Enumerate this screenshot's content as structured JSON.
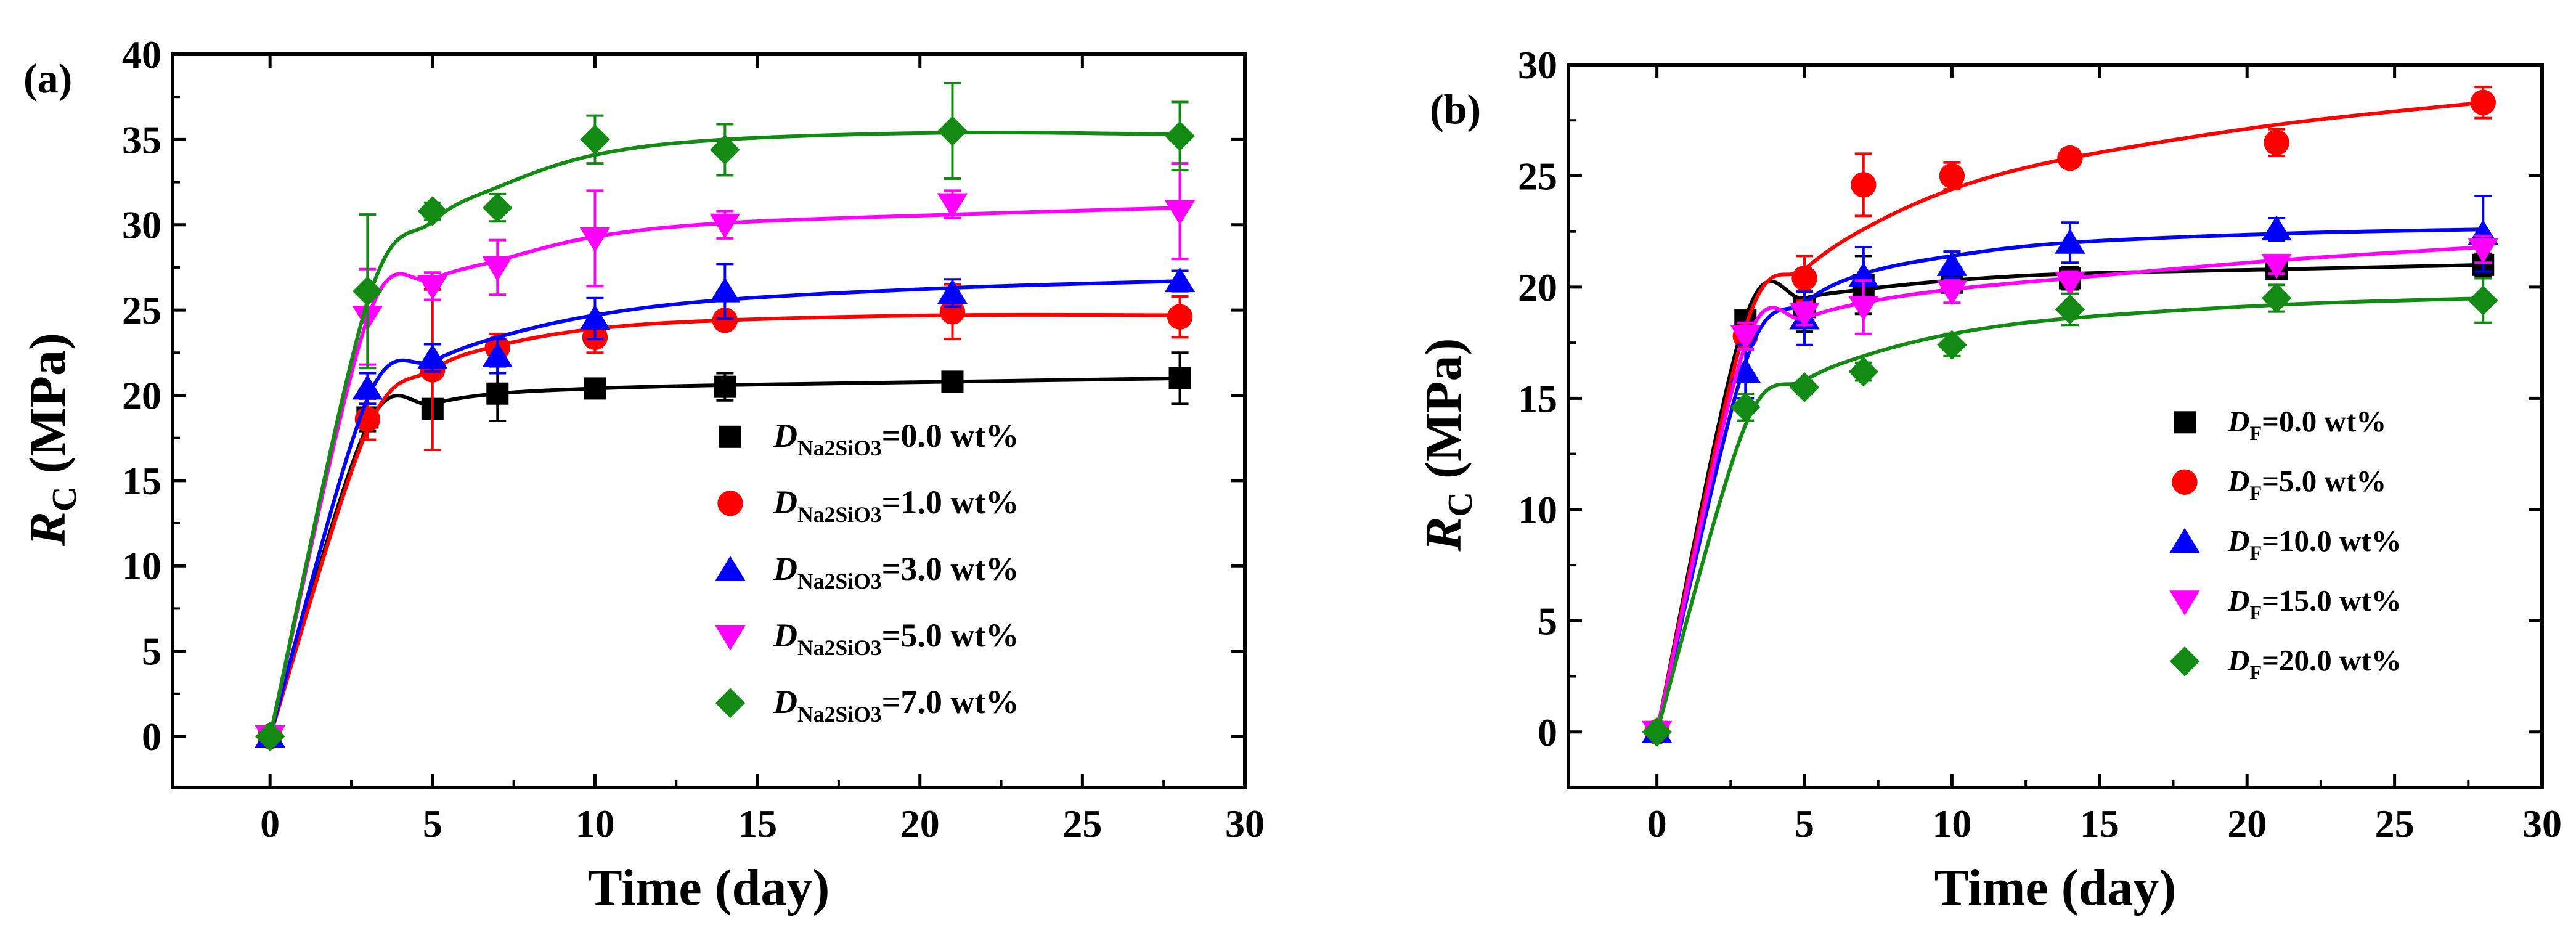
{
  "chart_data": [
    {
      "type": "scatter",
      "panel_label": "(a)",
      "title": "",
      "xlabel": "Time (day)",
      "ylabel_main": "R",
      "ylabel_sub": "C",
      "ylabel_unit": " (MPa)",
      "xlim": [
        -3,
        30
      ],
      "ylim": [
        -3,
        40
      ],
      "xticks": [
        0,
        5,
        10,
        15,
        20,
        25,
        30
      ],
      "yticks": [
        0,
        5,
        10,
        15,
        20,
        25,
        30,
        35,
        40
      ],
      "x": [
        0,
        3,
        5,
        7,
        10,
        14,
        21,
        28
      ],
      "series": [
        {
          "legend_prefix": "D",
          "legend_sub": "Na2SiO3",
          "legend_value": "=0.0 wt%",
          "marker": "square",
          "color": "#000000",
          "values": [
            0,
            18.7,
            19.2,
            20.1,
            20.4,
            20.5,
            20.8,
            21.0
          ],
          "errors": [
            0,
            0.8,
            0.5,
            1.6,
            0.5,
            0.8,
            0.5,
            1.5
          ],
          "fit": [
            0,
            18.2,
            19.5,
            20.1,
            20.4,
            20.6,
            20.8,
            21.0
          ]
        },
        {
          "legend_prefix": "D",
          "legend_sub": "Na2SiO3",
          "legend_value": "=1.0 wt%",
          "marker": "circle",
          "color": "#ff0000",
          "values": [
            0,
            18.6,
            21.5,
            22.8,
            23.4,
            24.4,
            24.9,
            24.6
          ],
          "errors": [
            0,
            1.2,
            4.7,
            0.8,
            0.9,
            0.5,
            1.6,
            1.2
          ],
          "fit": [
            0,
            18.0,
            21.5,
            22.9,
            23.9,
            24.4,
            24.7,
            24.7
          ]
        },
        {
          "legend_prefix": "D",
          "legend_sub": "Na2SiO3",
          "legend_value": "=3.0 wt%",
          "marker": "triangle-up",
          "color": "#0000ff",
          "values": [
            0,
            20.4,
            22.2,
            22.3,
            24.5,
            26.1,
            26.0,
            26.7
          ],
          "errors": [
            0,
            0.9,
            0.8,
            1.0,
            1.2,
            1.6,
            0.8,
            0.6
          ],
          "fit": [
            0,
            19.8,
            22.0,
            23.4,
            24.7,
            25.6,
            26.3,
            26.7
          ]
        },
        {
          "legend_prefix": "D",
          "legend_sub": "Na2SiO3",
          "legend_value": "=5.0 wt%",
          "marker": "triangle-down",
          "color": "#ff00ff",
          "values": [
            0,
            24.6,
            26.4,
            27.5,
            29.2,
            30.0,
            31.2,
            30.8
          ],
          "errors": [
            0,
            2.8,
            0.8,
            1.6,
            2.8,
            0.8,
            0.8,
            2.8
          ],
          "fit": [
            0,
            24.5,
            26.8,
            27.9,
            29.3,
            30.1,
            30.6,
            31.0
          ]
        },
        {
          "legend_prefix": "D",
          "legend_sub": "Na2SiO3",
          "legend_value": "=7.0 wt%",
          "marker": "diamond",
          "color": "#138a13",
          "values": [
            0,
            26.1,
            30.8,
            31.0,
            35.0,
            34.4,
            35.5,
            35.2
          ],
          "errors": [
            0,
            4.5,
            0.5,
            0.8,
            1.4,
            1.5,
            2.8,
            2.0
          ],
          "fit": [
            0,
            25.5,
            30.2,
            32.2,
            34.1,
            35.0,
            35.4,
            35.3
          ]
        }
      ]
    },
    {
      "type": "scatter",
      "panel_label": "(b)",
      "title": "",
      "xlabel": "Time (day)",
      "ylabel_main": "R",
      "ylabel_sub": "C",
      "ylabel_unit": " (MPa)",
      "xlim": [
        -3,
        30
      ],
      "ylim": [
        -2.5,
        30
      ],
      "xticks": [
        0,
        5,
        10,
        15,
        20,
        25,
        30
      ],
      "yticks": [
        0,
        5,
        10,
        15,
        20,
        25,
        30
      ],
      "x": [
        0,
        3,
        5,
        7,
        10,
        14,
        21,
        28
      ],
      "series": [
        {
          "legend_prefix": "D",
          "legend_sub": "F",
          "legend_value": "=0.0 wt%",
          "marker": "square",
          "color": "#000000",
          "values": [
            0,
            18.5,
            19.1,
            20.1,
            20.2,
            20.4,
            20.8,
            21.0
          ],
          "errors": [
            0,
            0.4,
            1.1,
            1.3,
            0.4,
            0.5,
            0.4,
            0.5
          ],
          "fit": [
            0,
            18.6,
            19.5,
            19.9,
            20.3,
            20.6,
            20.8,
            21.0
          ]
        },
        {
          "legend_prefix": "D",
          "legend_sub": "F",
          "legend_value": "=5.0 wt%",
          "marker": "circle",
          "color": "#ff0000",
          "values": [
            0,
            17.8,
            20.4,
            24.6,
            25.0,
            25.8,
            26.5,
            28.3
          ],
          "errors": [
            0,
            0.4,
            1.0,
            1.4,
            0.6,
            0.4,
            0.6,
            0.7
          ],
          "fit": [
            0,
            18.2,
            20.8,
            22.6,
            24.4,
            25.8,
            27.3,
            28.3
          ]
        },
        {
          "legend_prefix": "D",
          "legend_sub": "F",
          "legend_value": "=10.0 wt%",
          "marker": "triangle-up",
          "color": "#0000ff",
          "values": [
            0,
            16.2,
            18.6,
            20.5,
            21.0,
            22.0,
            22.6,
            22.4
          ],
          "errors": [
            0,
            1.2,
            1.2,
            1.3,
            0.6,
            0.9,
            0.5,
            1.7
          ],
          "fit": [
            0,
            16.6,
            19.3,
            20.6,
            21.4,
            22.0,
            22.4,
            22.6
          ]
        },
        {
          "legend_prefix": "D",
          "legend_sub": "F",
          "legend_value": "=15.0 wt%",
          "marker": "triangle-down",
          "color": "#ff00ff",
          "values": [
            0,
            17.8,
            18.8,
            19.1,
            19.8,
            20.2,
            21.0,
            21.7
          ],
          "errors": [
            0,
            0.6,
            0.5,
            1.2,
            0.5,
            0.5,
            0.4,
            0.6
          ],
          "fit": [
            0,
            17.4,
            18.6,
            19.3,
            19.9,
            20.4,
            21.2,
            21.8
          ]
        },
        {
          "legend_prefix": "D",
          "legend_sub": "F",
          "legend_value": "=20.0 wt%",
          "marker": "diamond",
          "color": "#138a13",
          "values": [
            0,
            14.6,
            15.5,
            16.2,
            17.4,
            19.0,
            19.5,
            19.4
          ],
          "errors": [
            0,
            0.6,
            0.3,
            0.4,
            0.5,
            0.7,
            0.6,
            1.0
          ],
          "fit": [
            0,
            13.8,
            15.8,
            16.9,
            17.9,
            18.6,
            19.2,
            19.5
          ]
        }
      ]
    }
  ]
}
